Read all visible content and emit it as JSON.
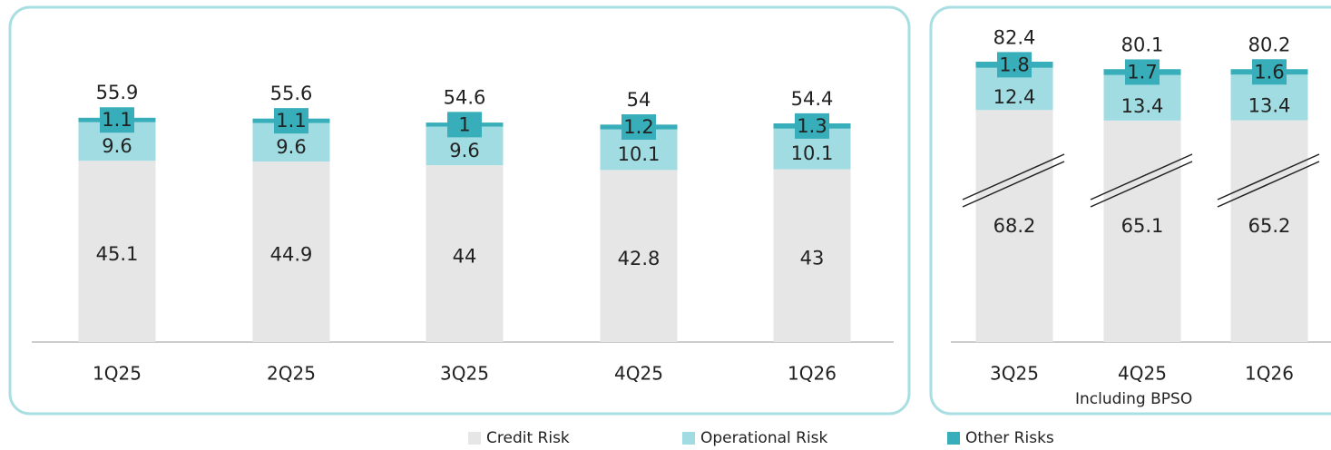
{
  "chart_data": [
    {
      "type": "stacked-bar",
      "categories": [
        "1Q25",
        "2Q25",
        "3Q25",
        "4Q25",
        "1Q26"
      ],
      "series": [
        {
          "name": "Credit Risk",
          "color": "#e6e6e6",
          "values": [
            45.1,
            44.9,
            44.0,
            42.8,
            43.0
          ]
        },
        {
          "name": "Operational Risk",
          "color": "#a0dce1",
          "values": [
            9.6,
            9.6,
            9.6,
            10.1,
            10.1
          ]
        },
        {
          "name": "Other Risks",
          "color": "#37aeb9",
          "values": [
            1.1,
            1.1,
            1.0,
            1.2,
            1.3
          ]
        }
      ],
      "totals": [
        55.9,
        55.6,
        54.6,
        54.0,
        54.4
      ]
    },
    {
      "type": "stacked-bar",
      "annotation": "Including BPSO",
      "categories": [
        "3Q25",
        "4Q25",
        "1Q26"
      ],
      "series": [
        {
          "color": "#e6e6e6",
          "values": [
            68.2,
            65.1,
            65.2
          ]
        },
        {
          "color": "#a0dce1",
          "values": [
            12.4,
            13.4,
            13.4
          ]
        },
        {
          "color": "#37aeb9",
          "values": [
            1.8,
            1.7,
            1.6
          ]
        }
      ],
      "totals": [
        82.4,
        80.1,
        80.2
      ],
      "broken_axis": true
    }
  ]
}
